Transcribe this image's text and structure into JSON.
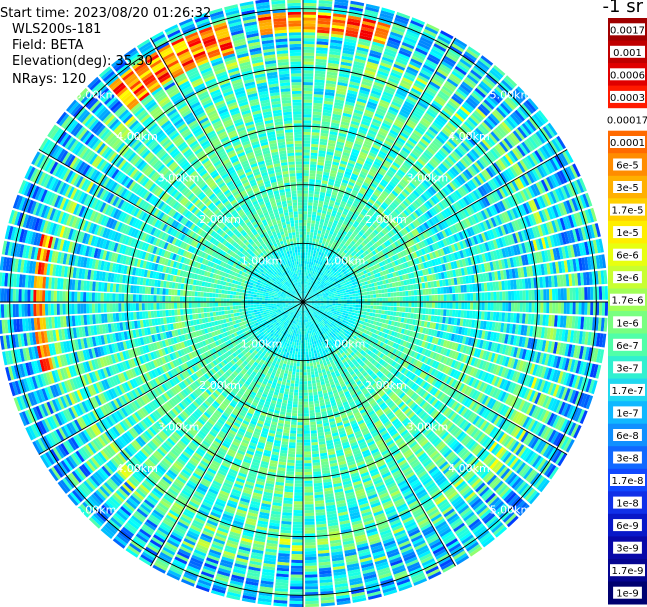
{
  "info": {
    "start_time": "Start time: 2023/08/20 01:26:32",
    "instrument": "WLS200s-181",
    "field": "Field: BETA",
    "elevation": "Elevation(deg): 35.30",
    "nrays": "NRays: 120"
  },
  "chart_data": {
    "type": "heatmap",
    "projection": "polar-ppi",
    "field": "BETA",
    "elevation_deg": 35.3,
    "nrays": 120,
    "range_rings_km": [
      1,
      2,
      3,
      4,
      5
    ],
    "ring_labels": [
      "1.00km",
      "2.00km",
      "3.00km",
      "4.00km",
      "5.00km"
    ],
    "max_range_km": 5.2,
    "radial_lines_deg": [
      0,
      30,
      60,
      90,
      120,
      150,
      180,
      210,
      240,
      270,
      300,
      330
    ],
    "enhanced_features": [
      {
        "azimuth_deg_from": 318,
        "azimuth_deg_to": 345,
        "range_km_from": 4.4,
        "range_km_to": 4.9,
        "level": "3e-5 to 0.0003"
      },
      {
        "azimuth_deg_from": 350,
        "azimuth_deg_to": 18,
        "range_km_from": 4.6,
        "range_km_to": 4.9,
        "level": "1e-5 to 1e-4"
      },
      {
        "azimuth_deg_from": 255,
        "azimuth_deg_to": 285,
        "range_km_from": 4.4,
        "range_km_to": 4.6,
        "level": "3e-6 to 3e-5"
      }
    ]
  },
  "colorbar": {
    "title": "-1 sr",
    "labels": [
      "0.0017",
      "0.001",
      "0.0006",
      "0.0003",
      "0.00017",
      "0.0001",
      "6e-5",
      "3e-5",
      "1.7e-5",
      "1e-5",
      "6e-6",
      "3e-6",
      "1.7e-6",
      "1e-6",
      "6e-7",
      "3e-7",
      "1.7e-7",
      "1e-7",
      "6e-8",
      "3e-8",
      "1.7e-8",
      "1e-8",
      "6e-9",
      "3e-9",
      "1.7e-9",
      "1e-9"
    ],
    "colors": [
      "#a00000",
      "#c00000",
      "#e00000",
      "#ff1a00",
      "#ffffff",
      "#ff6a00",
      "#ff8c00",
      "#ffb000",
      "#ffd000",
      "#ffee00",
      "#e8ff10",
      "#c8ff30",
      "#a0ff58",
      "#78ff80",
      "#50ffa8",
      "#30f0d0",
      "#20d8f0",
      "#10b8ff",
      "#1090ff",
      "#1068ff",
      "#1048ff",
      "#1030e8",
      "#0818c8",
      "#0808a8",
      "#050590",
      "#000070"
    ]
  }
}
